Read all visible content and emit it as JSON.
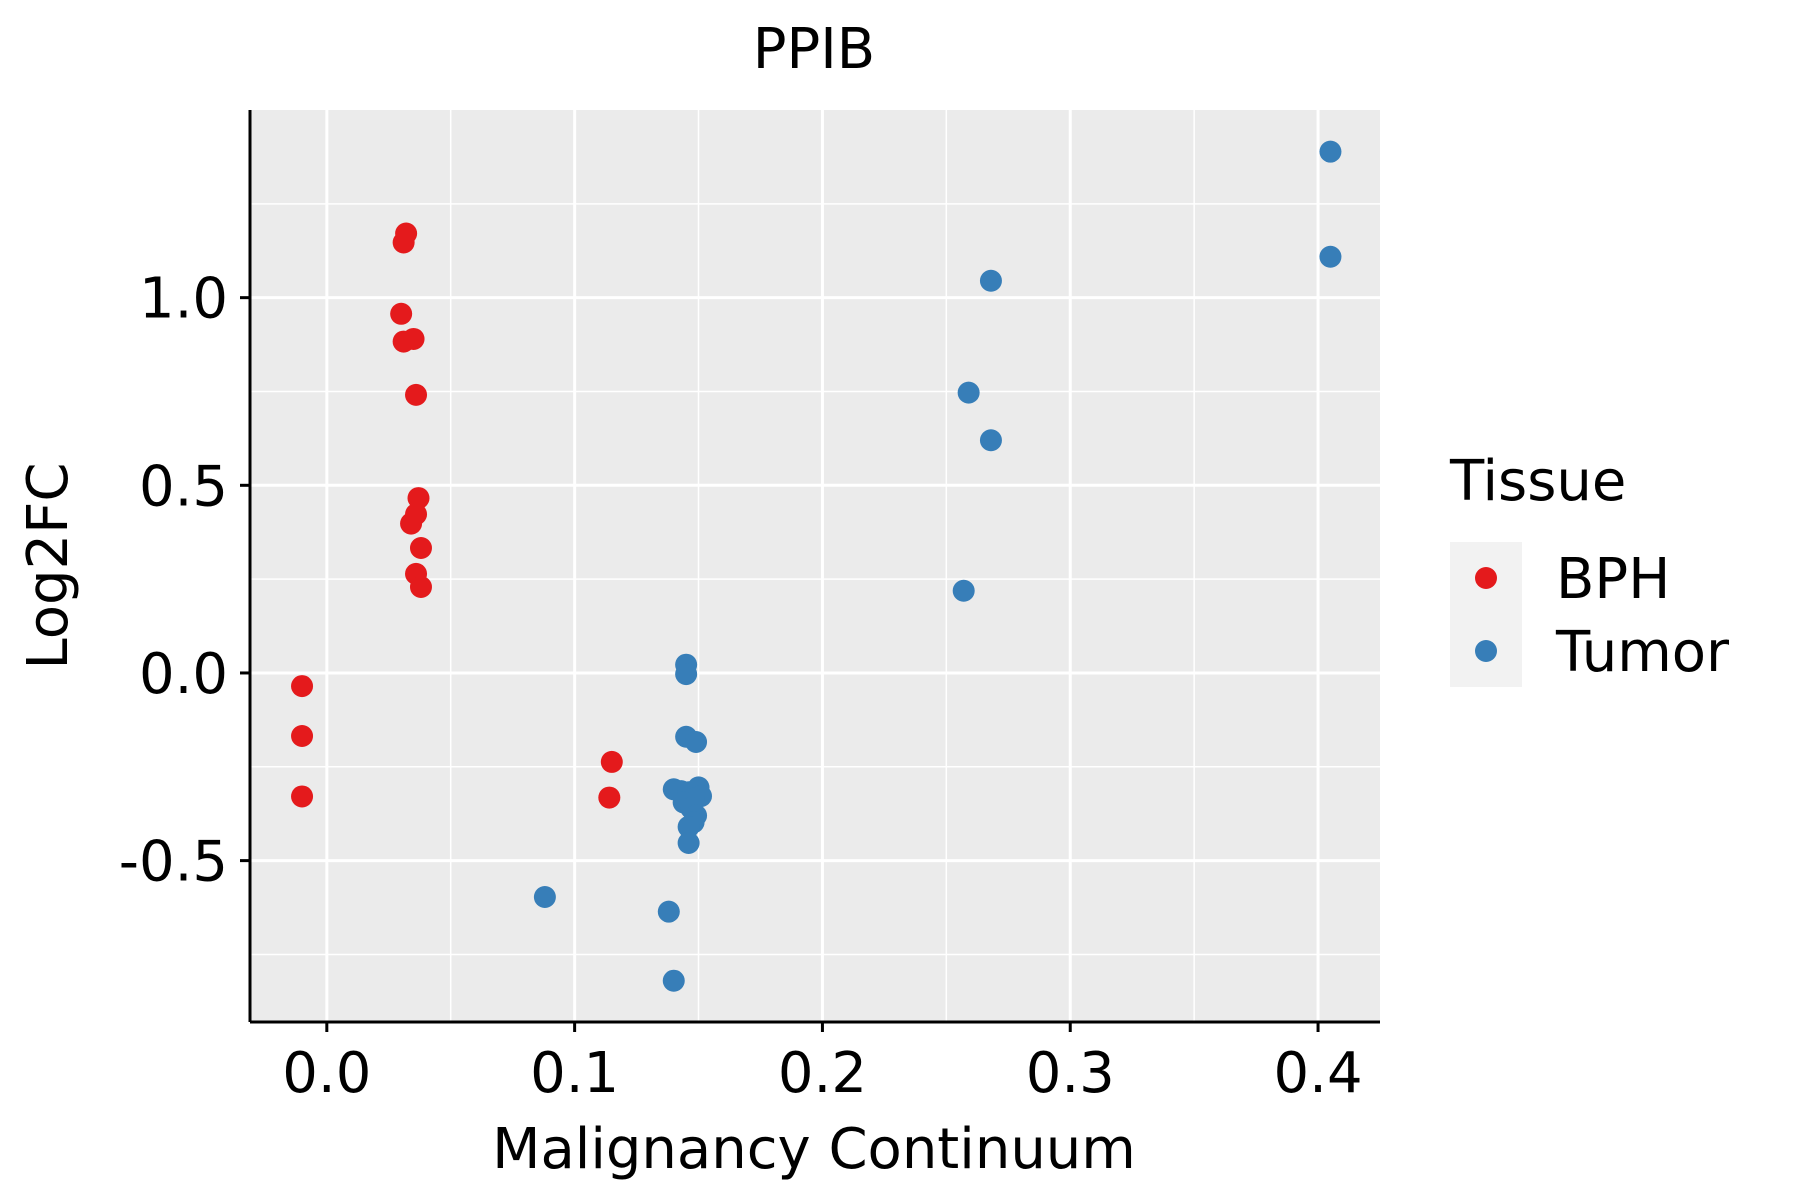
{
  "chart_data": {
    "type": "scatter",
    "title": "PPIB",
    "xlabel": "Malignancy Continuum",
    "ylabel": "Log2FC",
    "xlim": [
      -0.031,
      0.425
    ],
    "ylim": [
      -0.93,
      1.5
    ],
    "x_ticks": [
      0.0,
      0.1,
      0.2,
      0.3,
      0.4
    ],
    "x_tick_labels": [
      "0.0",
      "0.1",
      "0.2",
      "0.3",
      "0.4"
    ],
    "y_ticks": [
      -0.5,
      0.0,
      0.5,
      1.0
    ],
    "y_tick_labels": [
      "-0.5",
      "0.0",
      "0.5",
      "1.0"
    ],
    "grid": true,
    "legend": {
      "title": "Tissue",
      "position": "right",
      "entries": [
        {
          "label": "BPH",
          "color": "#E41A1C"
        },
        {
          "label": "Tumor",
          "color": "#377EB8"
        }
      ]
    },
    "series": [
      {
        "name": "BPH",
        "color": "#E41A1C",
        "points": [
          [
            -0.01,
            -0.035
          ],
          [
            -0.01,
            -0.168
          ],
          [
            -0.01,
            -0.329
          ],
          [
            0.032,
            1.171
          ],
          [
            0.031,
            1.147
          ],
          [
            0.03,
            0.957
          ],
          [
            0.035,
            0.89
          ],
          [
            0.031,
            0.883
          ],
          [
            0.036,
            0.741
          ],
          [
            0.037,
            0.466
          ],
          [
            0.036,
            0.423
          ],
          [
            0.034,
            0.398
          ],
          [
            0.038,
            0.333
          ],
          [
            0.036,
            0.264
          ],
          [
            0.038,
            0.229
          ],
          [
            0.115,
            -0.237
          ],
          [
            0.114,
            -0.332
          ]
        ]
      },
      {
        "name": "Tumor",
        "color": "#377EB8",
        "points": [
          [
            0.405,
            1.389
          ],
          [
            0.405,
            1.109
          ],
          [
            0.268,
            1.045
          ],
          [
            0.259,
            0.747
          ],
          [
            0.268,
            0.62
          ],
          [
            0.257,
            0.219
          ],
          [
            0.145,
            0.022
          ],
          [
            0.145,
            -0.003
          ],
          [
            0.145,
            -0.17
          ],
          [
            0.149,
            -0.184
          ],
          [
            0.14,
            -0.31
          ],
          [
            0.143,
            -0.315
          ],
          [
            0.146,
            -0.318
          ],
          [
            0.15,
            -0.305
          ],
          [
            0.151,
            -0.328
          ],
          [
            0.148,
            -0.335
          ],
          [
            0.144,
            -0.345
          ],
          [
            0.147,
            -0.36
          ],
          [
            0.149,
            -0.38
          ],
          [
            0.148,
            -0.398
          ],
          [
            0.146,
            -0.41
          ],
          [
            0.146,
            -0.453
          ],
          [
            0.088,
            -0.597
          ],
          [
            0.138,
            -0.636
          ],
          [
            0.14,
            -0.82
          ]
        ]
      }
    ]
  }
}
